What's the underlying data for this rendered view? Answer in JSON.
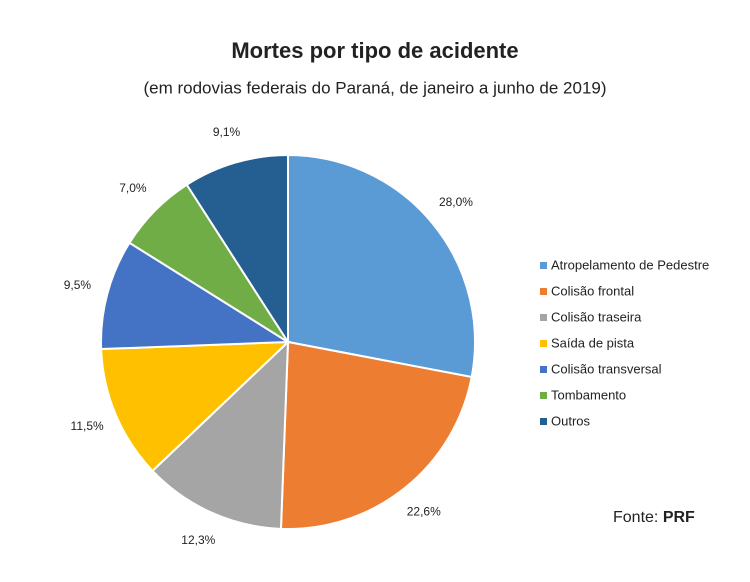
{
  "chart_data": {
    "type": "pie",
    "title": "Mortes por tipo de acidente",
    "subtitle": "(em rodovias federais do Paraná, de janeiro a junho de 2019)",
    "categories": [
      "Atropelamento de Pedestre",
      "Colisão frontal",
      "Colisão traseira",
      "Saída de pista",
      "Colisão transversal",
      "Tombamento",
      "Outros"
    ],
    "values": [
      28.0,
      22.6,
      12.3,
      11.5,
      9.5,
      7.0,
      9.1
    ],
    "value_labels": [
      "28,0%",
      "22,6%",
      "12,3%",
      "11,5%",
      "9,5%",
      "7,0%",
      "9,1%"
    ],
    "colors": [
      "#5b9bd5",
      "#ed7d31",
      "#a5a5a5",
      "#ffc000",
      "#4472c4",
      "#70ad47",
      "#255e91"
    ],
    "legend": "right",
    "source_label": "Fonte:",
    "source": "PRF"
  }
}
